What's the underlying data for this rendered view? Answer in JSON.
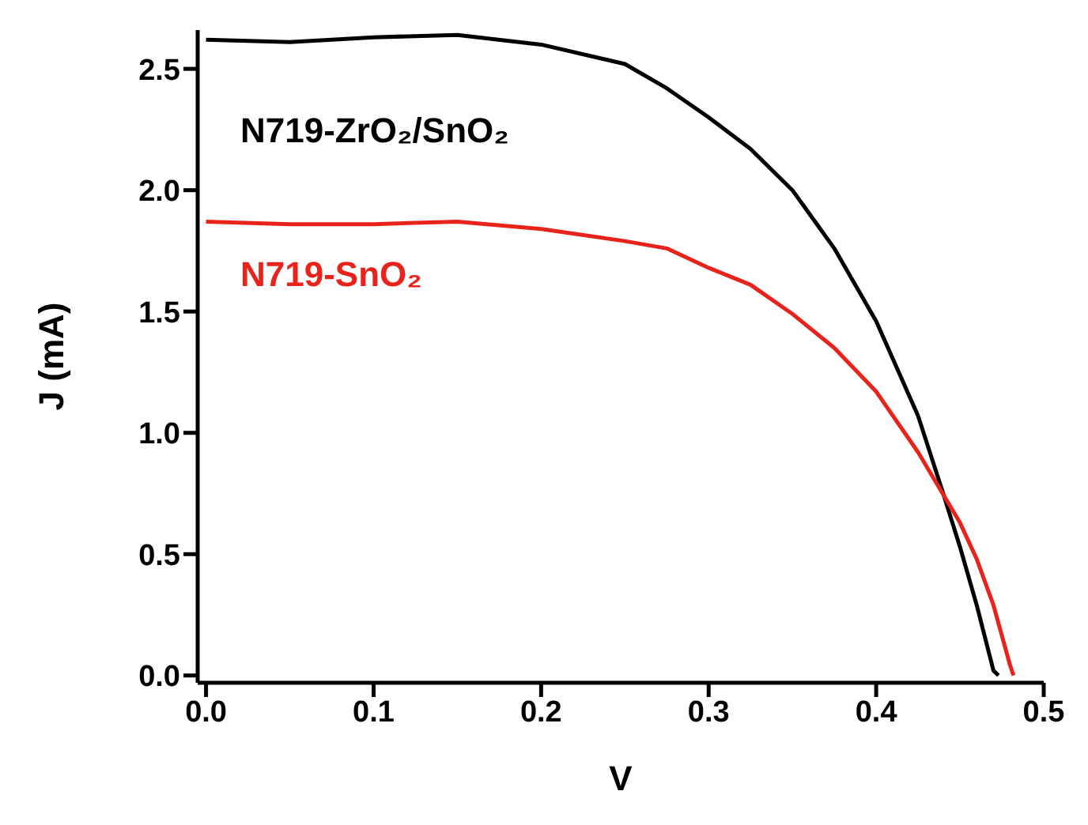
{
  "chart_data": {
    "type": "line",
    "xlabel": "V",
    "ylabel": "J (mA)",
    "xlim": [
      -0.005,
      0.5
    ],
    "xticks": [
      {
        "value": 0,
        "label": "0.0"
      },
      0.1,
      0.2,
      0.3,
      0.4,
      0.5
    ],
    "ylim": [
      -0.03,
      2.66
    ],
    "yticks": [
      {
        "value": 0,
        "label": "0.0"
      },
      0.5,
      {
        "value": 1,
        "label": "1.0"
      },
      1.5,
      {
        "value": 2,
        "label": "2.0"
      },
      2.5
    ],
    "series": [
      {
        "name": "N719-ZrO₂/SnO₂",
        "color": "#000000",
        "x": [
          0,
          0.05,
          0.1,
          0.15,
          0.2,
          0.25,
          0.275,
          0.3,
          0.325,
          0.35,
          0.375,
          0.4,
          0.425,
          0.44,
          0.45,
          0.46,
          0.47,
          0.473
        ],
        "values": [
          2.62,
          2.61,
          2.63,
          2.64,
          2.6,
          2.52,
          2.42,
          2.3,
          2.17,
          2.0,
          1.76,
          1.46,
          1.07,
          0.75,
          0.53,
          0.29,
          0.02,
          0
        ]
      },
      {
        "name": "N719-SnO₂",
        "color": "#e8231c",
        "x": [
          0,
          0.05,
          0.1,
          0.15,
          0.2,
          0.25,
          0.275,
          0.3,
          0.325,
          0.35,
          0.375,
          0.4,
          0.425,
          0.45,
          0.46,
          0.47,
          0.48,
          0.482
        ],
        "values": [
          1.87,
          1.86,
          1.86,
          1.87,
          1.84,
          1.79,
          1.76,
          1.68,
          1.61,
          1.49,
          1.35,
          1.17,
          0.92,
          0.63,
          0.48,
          0.29,
          0.04,
          0
        ]
      }
    ]
  }
}
